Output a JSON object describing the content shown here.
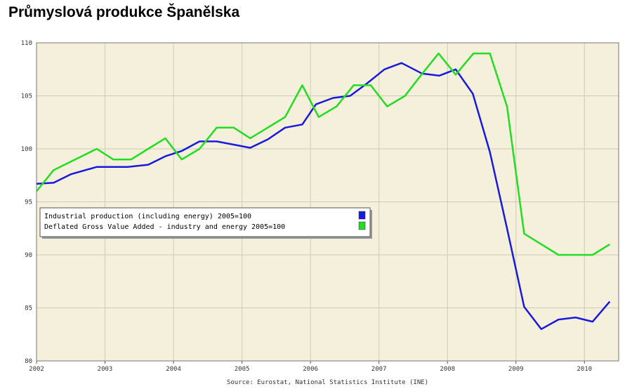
{
  "page_title": "Průmyslová produkce Španělska",
  "chart_data": {
    "type": "line",
    "title": "Průmyslová produkce Španělska",
    "source": "Source: Eurostat, National Statistics Institute (INE)",
    "xlabel": "",
    "ylabel": "",
    "xlim": [
      2002.0,
      2010.5
    ],
    "ylim": [
      80,
      110
    ],
    "yticks": [
      "80",
      "85",
      "90",
      "95",
      "100",
      "105",
      "110"
    ],
    "xticks": [
      "2002",
      "2003",
      "2004",
      "2005",
      "2006",
      "2007",
      "2008",
      "2009",
      "2010"
    ],
    "grid": true,
    "legend_position": "center-left",
    "plot_background": "#f5f0dc",
    "series": [
      {
        "name": "Industrial production (including energy) 2005=100",
        "color": "#1a1adc",
        "points": [
          [
            2002.0,
            96.7
          ],
          [
            2002.25,
            96.8
          ],
          [
            2002.5,
            97.6
          ],
          [
            2002.88,
            98.3
          ],
          [
            2003.08,
            98.3
          ],
          [
            2003.33,
            98.3
          ],
          [
            2003.63,
            98.5
          ],
          [
            2003.88,
            99.3
          ],
          [
            2004.12,
            99.8
          ],
          [
            2004.38,
            100.7
          ],
          [
            2004.63,
            100.7
          ],
          [
            2004.88,
            100.4
          ],
          [
            2005.12,
            100.1
          ],
          [
            2005.38,
            100.9
          ],
          [
            2005.63,
            102.0
          ],
          [
            2005.88,
            102.3
          ],
          [
            2006.08,
            104.2
          ],
          [
            2006.33,
            104.8
          ],
          [
            2006.58,
            105.0
          ],
          [
            2006.83,
            106.2
          ],
          [
            2007.08,
            107.5
          ],
          [
            2007.33,
            108.1
          ],
          [
            2007.63,
            107.1
          ],
          [
            2007.88,
            106.9
          ],
          [
            2008.12,
            107.5
          ],
          [
            2008.37,
            105.2
          ],
          [
            2008.62,
            99.7
          ],
          [
            2008.87,
            92.5
          ],
          [
            2009.12,
            85.1
          ],
          [
            2009.37,
            83.0
          ],
          [
            2009.62,
            83.9
          ],
          [
            2009.87,
            84.1
          ],
          [
            2010.12,
            83.7
          ],
          [
            2010.37,
            85.6
          ]
        ]
      },
      {
        "name": "Deflated Gross Value Added - industry and energy 2005=100",
        "color": "#22dd22",
        "points": [
          [
            2002.0,
            96.0
          ],
          [
            2002.25,
            98.0
          ],
          [
            2002.88,
            100.0
          ],
          [
            2003.12,
            99.0
          ],
          [
            2003.38,
            99.0
          ],
          [
            2003.63,
            100.0
          ],
          [
            2003.88,
            101.0
          ],
          [
            2004.12,
            99.0
          ],
          [
            2004.38,
            100.0
          ],
          [
            2004.63,
            102.0
          ],
          [
            2004.88,
            102.0
          ],
          [
            2005.12,
            101.0
          ],
          [
            2005.63,
            103.0
          ],
          [
            2005.88,
            106.0
          ],
          [
            2006.12,
            103.0
          ],
          [
            2006.38,
            104.0
          ],
          [
            2006.63,
            106.0
          ],
          [
            2006.88,
            106.0
          ],
          [
            2007.12,
            104.0
          ],
          [
            2007.38,
            105.0
          ],
          [
            2007.62,
            107.0
          ],
          [
            2007.87,
            109.0
          ],
          [
            2008.12,
            107.0
          ],
          [
            2008.38,
            109.0
          ],
          [
            2008.62,
            109.0
          ],
          [
            2008.87,
            104.0
          ],
          [
            2009.12,
            92.0
          ],
          [
            2009.62,
            90.0
          ],
          [
            2009.87,
            90.0
          ],
          [
            2010.12,
            90.0
          ],
          [
            2010.37,
            91.0
          ]
        ]
      }
    ]
  }
}
